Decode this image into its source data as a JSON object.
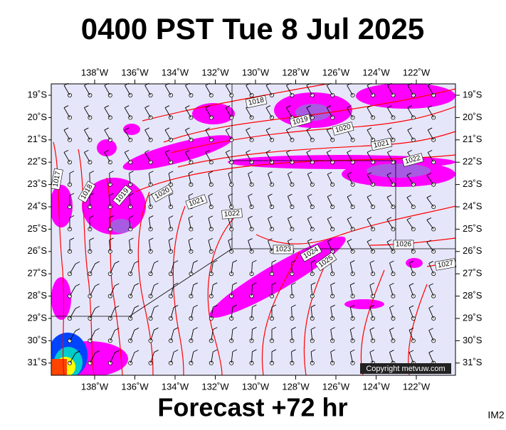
{
  "header": {
    "title": "0400 PST Tue 8 Jul 2025"
  },
  "axes": {
    "longitudes": [
      "138˚W",
      "136˚W",
      "134˚W",
      "132˚W",
      "130˚W",
      "128˚W",
      "126˚W",
      "124˚W",
      "122˚W"
    ],
    "latitudes": [
      "19˚S",
      "20˚S",
      "21˚S",
      "22˚S",
      "23˚S",
      "24˚S",
      "25˚S",
      "26˚S",
      "27˚S",
      "28˚S",
      "29˚S",
      "30˚S",
      "31˚S"
    ]
  },
  "contour_labels": [
    "1018",
    "1019",
    "1020",
    "1021",
    "1022",
    "1017",
    "1018",
    "1019",
    "1020",
    "1021",
    "1022",
    "1023",
    "1024",
    "1025",
    "1026",
    "1027"
  ],
  "copyright": "Copyright metvuw.com",
  "footer": {
    "caption": "Forecast +72 hr",
    "image_id": "IM2"
  }
}
